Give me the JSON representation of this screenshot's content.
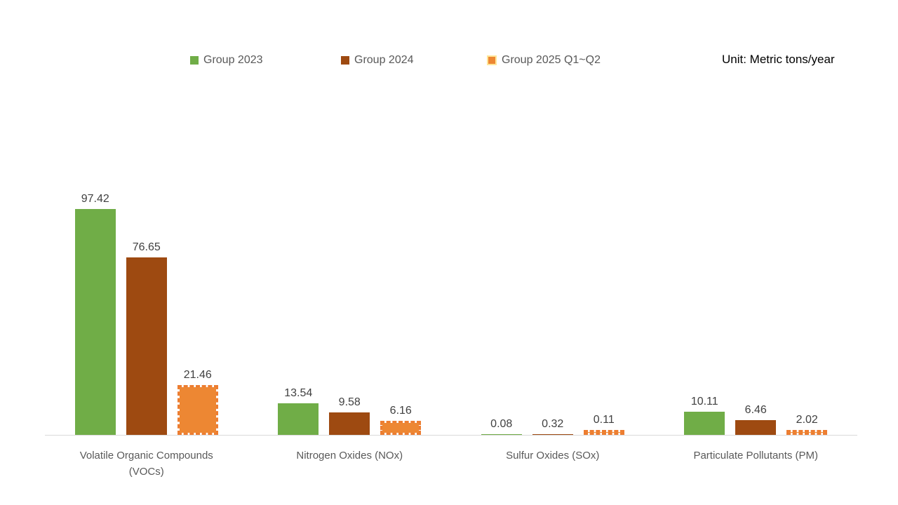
{
  "unit_label": "Unit: Metric tons/year",
  "colors": {
    "axis_line": "#D9D9D9",
    "value_label_text": "#404040",
    "category_text": "#595959",
    "legend_text": "#595959"
  },
  "chart_data": {
    "type": "bar",
    "title": "",
    "xlabel": "",
    "ylabel": "",
    "unit": "Metric tons/year",
    "ylim": [
      0,
      100
    ],
    "grid": false,
    "legend_position": "top",
    "value_labels": true,
    "categories": [
      "Volatile Organic Compounds\n(VOCs)",
      "Nitrogen Oxides (NOx)",
      "Sulfur Oxides (SOx)",
      "Particulate Pollutants (PM)"
    ],
    "series": [
      {
        "name": "Group 2023",
        "color": "#70AD47",
        "style": "solid",
        "values": [
          97.42,
          13.54,
          0.08,
          10.11
        ]
      },
      {
        "name": "Group 2024",
        "color": "#9E4A11",
        "style": "solid",
        "values": [
          76.65,
          9.58,
          0.32,
          6.46
        ]
      },
      {
        "name": "Group 2025 Q1~Q2",
        "color": "#ED8733",
        "style": "dashed",
        "dash_color": "#ED7D31",
        "edge_color": "#FFE699",
        "values": [
          21.46,
          6.16,
          0.11,
          2.02
        ]
      }
    ]
  }
}
